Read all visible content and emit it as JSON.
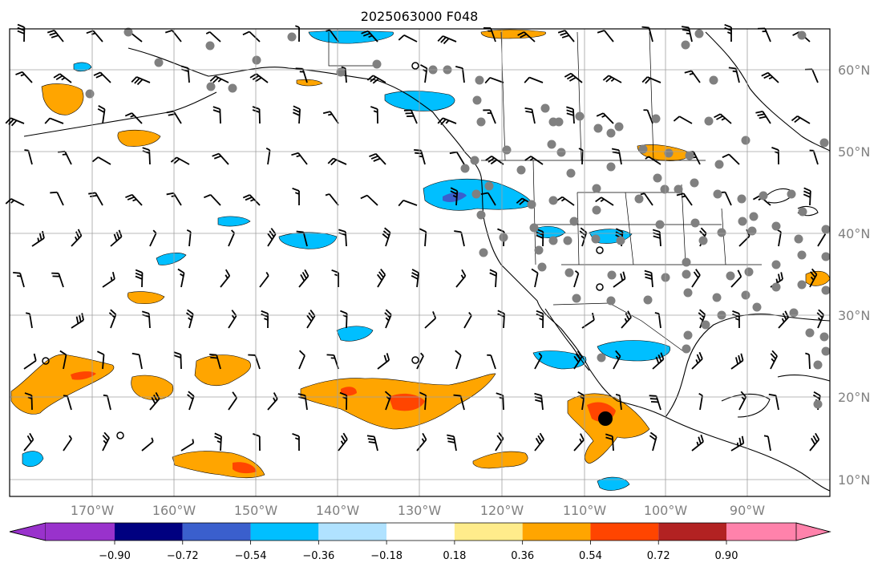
{
  "title": "2025063000 F048",
  "lat_labels": [
    "60°N",
    "50°N",
    "40°N",
    "30°N",
    "20°N",
    "10°N"
  ],
  "lon_labels": [
    "170°W",
    "160°W",
    "150°W",
    "140°W",
    "130°W",
    "120°W",
    "110°W",
    "100°W",
    "90°W"
  ],
  "colorbar": {
    "ticks": [
      "−0.90",
      "−0.72",
      "−0.54",
      "−0.36",
      "−0.18",
      "0.18",
      "0.36",
      "0.54",
      "0.72",
      "0.90"
    ],
    "colors": {
      "under": "#9932cc",
      "bins": [
        "#000080",
        "#3a5fcd",
        "#00bfff",
        "#b0e2ff",
        "#ffffff",
        "#ffec8b",
        "#ffa500",
        "#ff4500",
        "#b22222"
      ],
      "over": "#ff82ab"
    }
  },
  "colors": {
    "ocean": "#ffffff",
    "gridline": "#a0a0a0",
    "coastline": "#000000",
    "station": "#808080",
    "barb": "#000000"
  }
}
